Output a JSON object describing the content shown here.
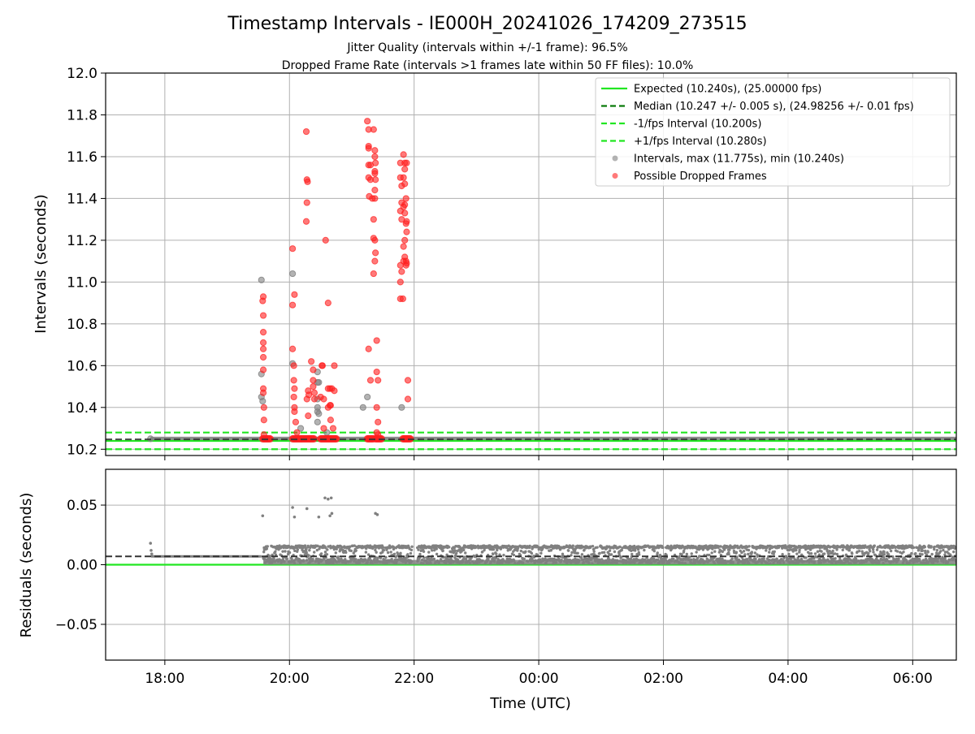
{
  "chart_data": {
    "type": "scatter",
    "title": "Timestamp Intervals - IE000H_20241026_174209_273515",
    "subtitle_lines": [
      "Jitter Quality (intervals within +/-1 frame): 96.5%",
      "Dropped Frame Rate (intervals >1 frames late within 50 FF files): 10.0%"
    ],
    "xlabel": "Time (UTC)",
    "x_range_hours": [
      17.05,
      30.7
    ],
    "x_ticks": [
      {
        "h": 18,
        "label": "18:00"
      },
      {
        "h": 20,
        "label": "20:00"
      },
      {
        "h": 22,
        "label": "22:00"
      },
      {
        "h": 24,
        "label": "00:00"
      },
      {
        "h": 26,
        "label": "02:00"
      },
      {
        "h": 28,
        "label": "04:00"
      },
      {
        "h": 30,
        "label": "06:00"
      }
    ],
    "grid": true,
    "top_panel": {
      "ylabel": "Intervals (seconds)",
      "ylim": [
        10.17,
        12.0
      ],
      "y_ticks": [
        {
          "v": 10.2,
          "label": "10.2"
        },
        {
          "v": 10.4,
          "label": "10.4"
        },
        {
          "v": 10.6,
          "label": "10.6"
        },
        {
          "v": 10.8,
          "label": "10.8"
        },
        {
          "v": 11.0,
          "label": "11.0"
        },
        {
          "v": 11.2,
          "label": "11.2"
        },
        {
          "v": 11.4,
          "label": "11.4"
        },
        {
          "v": 11.6,
          "label": "11.6"
        },
        {
          "v": 11.8,
          "label": "11.8"
        },
        {
          "v": 12.0,
          "label": "12.0"
        }
      ],
      "legend_position": "upper-right",
      "legend": [
        {
          "label": "Expected (10.240s), (25.00000 fps)",
          "kind": "solid-line",
          "color": "#22e622"
        },
        {
          "label": "Median (10.247 +/- 0.005 s), (24.98256 +/- 0.01 fps)",
          "kind": "dashed-line",
          "color": "#0a7a0a"
        },
        {
          "label": "-1/fps Interval (10.200s)",
          "kind": "dashed-line",
          "color": "#22e622"
        },
        {
          "label": "+1/fps Interval (10.280s)",
          "kind": "dashed-line",
          "color": "#22e622"
        },
        {
          "label": "Intervals, max (11.775s), min (10.240s)",
          "kind": "marker",
          "color": "#808080"
        },
        {
          "label": "Possible Dropped Frames",
          "kind": "marker",
          "color": "#ff2020"
        }
      ],
      "expected": 10.24,
      "median": 10.247,
      "lower_bound": 10.2,
      "upper_bound": 10.28,
      "baseline_series": {
        "name": "Intervals",
        "x_start_h": 17.77,
        "x_end_h": 30.7,
        "y": 10.25
      },
      "gray_points": [
        [
          17.77,
          10.25
        ],
        [
          19.55,
          11.01
        ],
        [
          19.55,
          10.56
        ],
        [
          19.55,
          10.45
        ],
        [
          19.57,
          10.43
        ],
        [
          20.05,
          11.04
        ],
        [
          20.05,
          10.61
        ],
        [
          20.45,
          10.57
        ],
        [
          20.45,
          10.52
        ],
        [
          20.47,
          10.52
        ],
        [
          20.45,
          10.44
        ],
        [
          20.45,
          10.4
        ],
        [
          20.45,
          10.38
        ],
        [
          20.47,
          10.37
        ],
        [
          20.45,
          10.33
        ],
        [
          20.18,
          10.3
        ],
        [
          20.6,
          10.28
        ],
        [
          21.18,
          10.4
        ],
        [
          21.25,
          10.45
        ],
        [
          21.8,
          10.4
        ]
      ],
      "red_points": [
        [
          19.58,
          10.93
        ],
        [
          19.57,
          10.91
        ],
        [
          19.58,
          10.84
        ],
        [
          19.58,
          10.76
        ],
        [
          19.58,
          10.71
        ],
        [
          19.58,
          10.68
        ],
        [
          19.58,
          10.64
        ],
        [
          19.58,
          10.58
        ],
        [
          19.58,
          10.49
        ],
        [
          19.58,
          10.47
        ],
        [
          19.59,
          10.4
        ],
        [
          19.59,
          10.34
        ],
        [
          19.59,
          10.27
        ],
        [
          20.05,
          11.16
        ],
        [
          20.08,
          10.94
        ],
        [
          20.05,
          10.89
        ],
        [
          20.05,
          10.68
        ],
        [
          20.07,
          10.6
        ],
        [
          20.07,
          10.53
        ],
        [
          20.08,
          10.49
        ],
        [
          20.07,
          10.45
        ],
        [
          20.08,
          10.4
        ],
        [
          20.08,
          10.38
        ],
        [
          20.1,
          10.33
        ],
        [
          20.12,
          10.28
        ],
        [
          20.27,
          11.72
        ],
        [
          20.28,
          11.49
        ],
        [
          20.29,
          11.48
        ],
        [
          20.28,
          11.38
        ],
        [
          20.27,
          11.29
        ],
        [
          20.3,
          10.48
        ],
        [
          20.31,
          10.46
        ],
        [
          20.28,
          10.44
        ],
        [
          20.3,
          10.36
        ],
        [
          20.35,
          10.62
        ],
        [
          20.38,
          10.58
        ],
        [
          20.38,
          10.53
        ],
        [
          20.38,
          10.5
        ],
        [
          20.4,
          10.47
        ],
        [
          20.4,
          10.44
        ],
        [
          20.52,
          10.6
        ],
        [
          20.53,
          10.6
        ],
        [
          20.5,
          10.45
        ],
        [
          20.55,
          10.44
        ],
        [
          20.55,
          10.3
        ],
        [
          20.58,
          11.2
        ],
        [
          20.62,
          10.9
        ],
        [
          20.62,
          10.49
        ],
        [
          20.65,
          10.49
        ],
        [
          20.68,
          10.49
        ],
        [
          20.65,
          10.41
        ],
        [
          20.66,
          10.41
        ],
        [
          20.62,
          10.4
        ],
        [
          20.66,
          10.34
        ],
        [
          20.7,
          10.3
        ],
        [
          20.72,
          10.6
        ],
        [
          20.72,
          10.48
        ],
        [
          21.25,
          11.77
        ],
        [
          21.27,
          11.73
        ],
        [
          21.27,
          11.65
        ],
        [
          21.27,
          11.64
        ],
        [
          21.27,
          11.56
        ],
        [
          21.3,
          11.56
        ],
        [
          21.27,
          11.5
        ],
        [
          21.3,
          11.49
        ],
        [
          21.28,
          11.41
        ],
        [
          21.33,
          11.4
        ],
        [
          21.27,
          10.68
        ],
        [
          21.3,
          10.53
        ],
        [
          21.35,
          11.73
        ],
        [
          21.37,
          11.63
        ],
        [
          21.37,
          11.6
        ],
        [
          21.38,
          11.57
        ],
        [
          21.37,
          11.53
        ],
        [
          21.37,
          11.52
        ],
        [
          21.38,
          11.49
        ],
        [
          21.37,
          11.44
        ],
        [
          21.37,
          11.4
        ],
        [
          21.35,
          11.3
        ],
        [
          21.35,
          11.21
        ],
        [
          21.37,
          11.2
        ],
        [
          21.38,
          11.14
        ],
        [
          21.37,
          11.1
        ],
        [
          21.35,
          11.04
        ],
        [
          21.4,
          10.72
        ],
        [
          21.4,
          10.57
        ],
        [
          21.42,
          10.53
        ],
        [
          21.4,
          10.4
        ],
        [
          21.42,
          10.33
        ],
        [
          21.4,
          10.28
        ],
        [
          21.42,
          10.27
        ],
        [
          21.78,
          11.57
        ],
        [
          21.78,
          11.5
        ],
        [
          21.8,
          11.46
        ],
        [
          21.8,
          11.38
        ],
        [
          21.78,
          11.34
        ],
        [
          21.8,
          11.3
        ],
        [
          21.78,
          11.08
        ],
        [
          21.8,
          11.05
        ],
        [
          21.78,
          11.0
        ],
        [
          21.78,
          10.92
        ],
        [
          21.82,
          10.92
        ],
        [
          21.83,
          11.61
        ],
        [
          21.85,
          11.57
        ],
        [
          21.88,
          11.57
        ],
        [
          21.85,
          11.54
        ],
        [
          21.83,
          11.5
        ],
        [
          21.85,
          11.47
        ],
        [
          21.87,
          11.4
        ],
        [
          21.85,
          11.37
        ],
        [
          21.83,
          11.36
        ],
        [
          21.85,
          11.33
        ],
        [
          21.88,
          11.29
        ],
        [
          21.87,
          11.28
        ],
        [
          21.88,
          11.24
        ],
        [
          21.85,
          11.2
        ],
        [
          21.83,
          11.17
        ],
        [
          21.85,
          11.12
        ],
        [
          21.83,
          11.1
        ],
        [
          21.87,
          11.1
        ],
        [
          21.88,
          11.09
        ],
        [
          21.87,
          11.08
        ],
        [
          21.9,
          10.53
        ],
        [
          21.9,
          10.44
        ]
      ],
      "red_clusters_near_floor": [
        [
          19.57,
          19.7
        ],
        [
          20.05,
          20.2
        ],
        [
          20.2,
          20.4
        ],
        [
          20.5,
          20.62
        ],
        [
          20.62,
          20.76
        ],
        [
          21.25,
          21.35
        ],
        [
          21.38,
          21.48
        ],
        [
          21.82,
          21.95
        ]
      ]
    },
    "bottom_panel": {
      "ylabel": "Residuals (seconds)",
      "ylim": [
        -0.08,
        0.08
      ],
      "y_ticks": [
        {
          "v": 0.05,
          "label": "0.05"
        },
        {
          "v": 0.0,
          "label": "0.00"
        },
        {
          "v": -0.05,
          "label": "−0.05"
        }
      ],
      "expected_residual": 0.0,
      "median_residual": 0.007,
      "point_color": "#808080",
      "early_segment": {
        "x_start_h": 17.78,
        "x_end_h": 19.55,
        "y": 0.007
      },
      "dense_band": {
        "x_start_h": 19.58,
        "x_end_h": 30.7,
        "y_min": 0.0,
        "y_max": 0.016
      },
      "band_gaps_h": [
        [
          21.97,
          22.05
        ]
      ],
      "outliers": [
        [
          17.77,
          0.018
        ],
        [
          17.78,
          0.012
        ],
        [
          17.79,
          0.009
        ],
        [
          19.57,
          0.041
        ],
        [
          20.05,
          0.048
        ],
        [
          20.08,
          0.04
        ],
        [
          20.28,
          0.047
        ],
        [
          20.47,
          0.04
        ],
        [
          20.57,
          0.056
        ],
        [
          20.62,
          0.055
        ],
        [
          20.67,
          0.056
        ],
        [
          20.65,
          0.041
        ],
        [
          20.68,
          0.043
        ],
        [
          21.38,
          0.043
        ],
        [
          21.41,
          0.042
        ]
      ]
    }
  }
}
